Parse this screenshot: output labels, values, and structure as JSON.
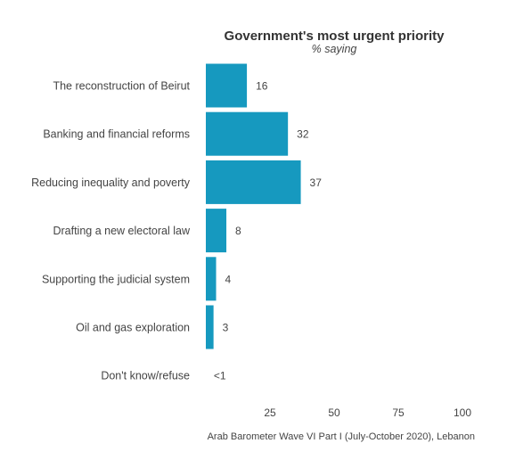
{
  "chart_data": {
    "type": "bar",
    "orientation": "horizontal",
    "title": "Government's most urgent priority",
    "subtitle": "% saying",
    "categories": [
      "The reconstruction of Beirut",
      "Banking and financial reforms",
      "Reducing inequality and poverty",
      "Drafting a new electoral law",
      "Supporting the judicial system",
      "Oil and gas exploration",
      "Don't know/refuse"
    ],
    "values": [
      16,
      32,
      37,
      8,
      4,
      3,
      0.3
    ],
    "value_labels": [
      "16",
      "32",
      "37",
      "8",
      "4",
      "3",
      "<1"
    ],
    "xlim": [
      0,
      100
    ],
    "xticks": [
      25,
      50,
      75,
      100
    ],
    "grid": false,
    "legend": "none",
    "caption": "Arab Barometer Wave VI Part I (July-October 2020), Lebanon",
    "bar_color": "#1699bf"
  }
}
